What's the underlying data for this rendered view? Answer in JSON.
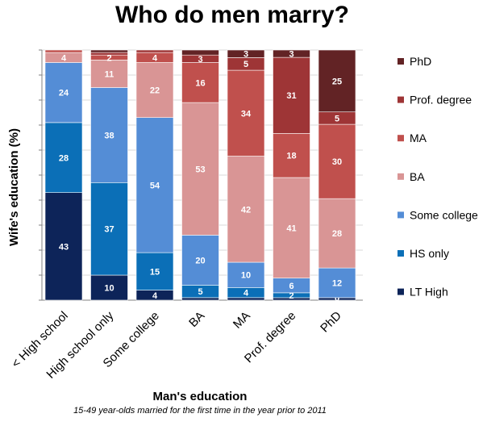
{
  "chart_data": {
    "type": "bar",
    "stacked": true,
    "title": "Who do men marry?",
    "ylabel": "Wife's education (%)",
    "xlabel": "Man's education",
    "note": "15-49 year-olds married for the first time in the year prior to 2011",
    "ylim": [
      0,
      100
    ],
    "categories": [
      "< High school",
      "High school only",
      "Some college",
      "BA",
      "MA",
      "Prof. degree",
      "PhD"
    ],
    "series": [
      {
        "name": "LT High",
        "color": "#0d2459",
        "values": [
          43,
          10,
          4,
          1,
          1,
          1,
          1
        ],
        "labels": [
          "43",
          "10",
          "4",
          "",
          "",
          "",
          ""
        ]
      },
      {
        "name": "HS only",
        "color": "#0b6fb7",
        "values": [
          28,
          37,
          15,
          5,
          4,
          2,
          0
        ],
        "labels": [
          "28",
          "37",
          "15",
          "5",
          "4",
          "2",
          "0"
        ]
      },
      {
        "name": "Some college",
        "color": "#548dd6",
        "values": [
          24,
          38,
          54,
          20,
          10,
          6,
          12
        ],
        "labels": [
          "24",
          "38",
          "54",
          "20",
          "10",
          "6",
          "12"
        ]
      },
      {
        "name": "BA",
        "color": "#d99595",
        "values": [
          4,
          11,
          22,
          53,
          42,
          41,
          28
        ],
        "labels": [
          "4",
          "11",
          "22",
          "53",
          "42",
          "41",
          "28"
        ]
      },
      {
        "name": "MA",
        "color": "#c0504d",
        "values": [
          1,
          2,
          4,
          16,
          34,
          18,
          30
        ],
        "labels": [
          "",
          "2",
          "4",
          "16",
          "34",
          "18",
          "30"
        ]
      },
      {
        "name": "Prof. degree",
        "color": "#9e3536",
        "values": [
          0,
          1,
          1,
          3,
          5,
          31,
          5
        ],
        "labels": [
          "",
          "",
          "",
          "3",
          "5",
          "31",
          "5"
        ]
      },
      {
        "name": "PhD",
        "color": "#622325",
        "values": [
          0,
          1,
          0,
          2,
          3,
          3,
          25
        ],
        "labels": [
          "",
          "",
          "",
          "",
          "3",
          "3",
          "25"
        ]
      }
    ],
    "legend_order": [
      "PhD",
      "Prof. degree",
      "MA",
      "BA",
      "Some college",
      "HS only",
      "LT High"
    ],
    "legend_position": "right"
  }
}
